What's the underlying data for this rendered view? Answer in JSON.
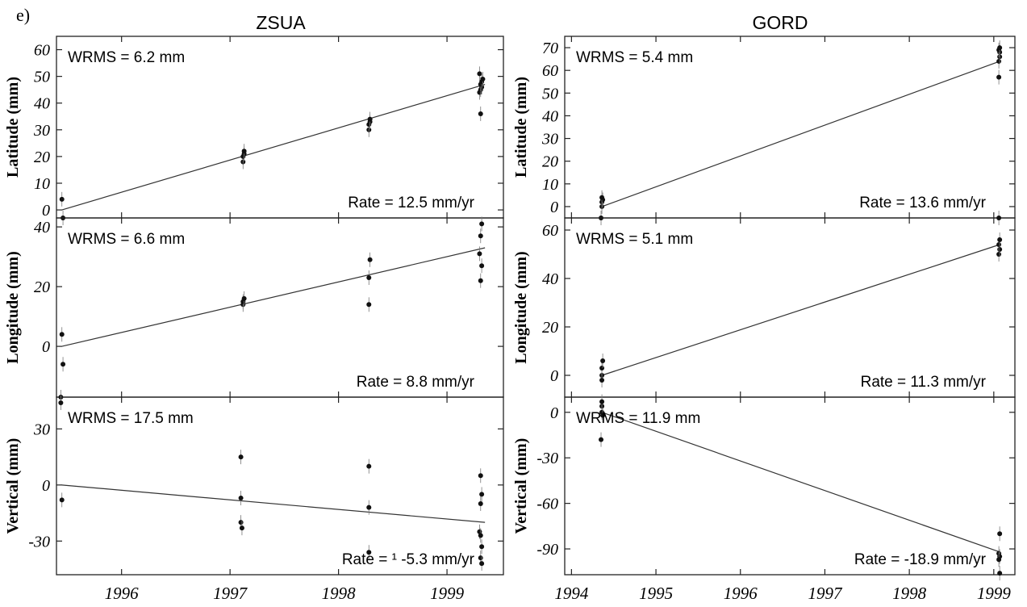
{
  "figure_label": "e)",
  "chart_data": [
    {
      "type": "scatter",
      "station": "ZSUA",
      "component": "Latitude",
      "ylabel": "Latitude (mm)",
      "wrms": "WRMS = 6.2 mm",
      "rate": "Rate = 12.5  mm/yr",
      "xlim": [
        1995.4,
        1999.52
      ],
      "ylim": [
        -3,
        65
      ],
      "yticks": [
        0,
        10,
        20,
        30,
        40,
        50,
        60
      ],
      "xticks": [],
      "points": [
        {
          "x": 1995.45,
          "y": 4
        },
        {
          "x": 1995.46,
          "y": -3
        },
        {
          "x": 1997.12,
          "y": 18
        },
        {
          "x": 1997.12,
          "y": 20
        },
        {
          "x": 1997.13,
          "y": 21
        },
        {
          "x": 1997.13,
          "y": 22
        },
        {
          "x": 1998.28,
          "y": 30
        },
        {
          "x": 1998.28,
          "y": 32
        },
        {
          "x": 1998.29,
          "y": 33
        },
        {
          "x": 1998.29,
          "y": 34
        },
        {
          "x": 1999.31,
          "y": 36
        },
        {
          "x": 1999.3,
          "y": 44
        },
        {
          "x": 1999.31,
          "y": 45
        },
        {
          "x": 1999.32,
          "y": 46
        },
        {
          "x": 1999.31,
          "y": 47
        },
        {
          "x": 1999.32,
          "y": 48
        },
        {
          "x": 1999.33,
          "y": 49
        },
        {
          "x": 1999.3,
          "y": 51
        }
      ],
      "fit": [
        {
          "x": 1995.45,
          "y": 0
        },
        {
          "x": 1999.35,
          "y": 47
        }
      ]
    },
    {
      "type": "scatter",
      "station": "ZSUA",
      "component": "Longitude",
      "ylabel": "Longitude (mm)",
      "wrms": "WRMS = 6.6 mm",
      "rate": "Rate = 8.8  mm/yr",
      "xlim": [
        1995.4,
        1999.52
      ],
      "ylim": [
        -17,
        43
      ],
      "yticks": [
        0,
        20,
        40
      ],
      "xticks": [],
      "points": [
        {
          "x": 1995.45,
          "y": 4
        },
        {
          "x": 1995.46,
          "y": -6
        },
        {
          "x": 1995.44,
          "y": -17
        },
        {
          "x": 1997.12,
          "y": 14
        },
        {
          "x": 1997.12,
          "y": 15
        },
        {
          "x": 1997.13,
          "y": 16
        },
        {
          "x": 1998.28,
          "y": 14
        },
        {
          "x": 1998.28,
          "y": 23
        },
        {
          "x": 1998.29,
          "y": 29
        },
        {
          "x": 1999.31,
          "y": 22
        },
        {
          "x": 1999.32,
          "y": 27
        },
        {
          "x": 1999.3,
          "y": 31
        },
        {
          "x": 1999.31,
          "y": 37
        },
        {
          "x": 1999.32,
          "y": 41
        }
      ],
      "fit": [
        {
          "x": 1995.45,
          "y": 0
        },
        {
          "x": 1999.35,
          "y": 33
        }
      ]
    },
    {
      "type": "scatter",
      "station": "ZSUA",
      "component": "Vertical",
      "ylabel": "Vertical (mm)",
      "wrms": "WRMS = 17.5 mm",
      "rate": "Rate = ¹ -5.3  mm/yr",
      "xlim": [
        1995.4,
        1999.52
      ],
      "ylim": [
        -48,
        47
      ],
      "yticks": [
        -30,
        0,
        30
      ],
      "xticks": [
        1996,
        1997,
        1998,
        1999
      ],
      "points": [
        {
          "x": 1995.45,
          "y": -8
        },
        {
          "x": 1995.44,
          "y": 44
        },
        {
          "x": 1997.1,
          "y": 15
        },
        {
          "x": 1997.1,
          "y": -7
        },
        {
          "x": 1997.1,
          "y": -20
        },
        {
          "x": 1997.11,
          "y": -23
        },
        {
          "x": 1998.28,
          "y": 10
        },
        {
          "x": 1998.28,
          "y": -12
        },
        {
          "x": 1998.28,
          "y": -36
        },
        {
          "x": 1999.31,
          "y": 5
        },
        {
          "x": 1999.32,
          "y": -5
        },
        {
          "x": 1999.31,
          "y": -10
        },
        {
          "x": 1999.3,
          "y": -25
        },
        {
          "x": 1999.31,
          "y": -27
        },
        {
          "x": 1999.32,
          "y": -33
        },
        {
          "x": 1999.31,
          "y": -39
        },
        {
          "x": 1999.32,
          "y": -42
        }
      ],
      "fit": [
        {
          "x": 1995.45,
          "y": 0
        },
        {
          "x": 1999.35,
          "y": -20
        }
      ]
    },
    {
      "type": "scatter",
      "station": "GORD",
      "component": "Latitude",
      "ylabel": "Latitude (mm)",
      "wrms": "WRMS = 5.4 mm",
      "rate": "Rate = 13.6 mm/yr",
      "xlim": [
        1993.92,
        1999.25
      ],
      "ylim": [
        -5,
        75
      ],
      "yticks": [
        0,
        10,
        20,
        30,
        40,
        50,
        60,
        70
      ],
      "xticks": [],
      "points": [
        {
          "x": 1994.36,
          "y": 0
        },
        {
          "x": 1994.36,
          "y": 2
        },
        {
          "x": 1994.37,
          "y": 3
        },
        {
          "x": 1994.36,
          "y": 4
        },
        {
          "x": 1994.35,
          "y": -5
        },
        {
          "x": 1999.06,
          "y": 57
        },
        {
          "x": 1999.06,
          "y": 64
        },
        {
          "x": 1999.07,
          "y": 66
        },
        {
          "x": 1999.07,
          "y": 68
        },
        {
          "x": 1999.06,
          "y": 69
        },
        {
          "x": 1999.07,
          "y": 70
        }
      ],
      "fit": [
        {
          "x": 1994.36,
          "y": 0
        },
        {
          "x": 1999.07,
          "y": 64
        }
      ]
    },
    {
      "type": "scatter",
      "station": "GORD",
      "component": "Longitude",
      "ylabel": "Longitude (mm)",
      "wrms": "WRMS = 5.1 mm",
      "rate": "Rate = 11.3  mm/yr",
      "xlim": [
        1993.92,
        1999.25
      ],
      "ylim": [
        -9,
        65
      ],
      "yticks": [
        0,
        20,
        40,
        60
      ],
      "xticks": [],
      "points": [
        {
          "x": 1994.36,
          "y": 0
        },
        {
          "x": 1994.36,
          "y": 3
        },
        {
          "x": 1994.37,
          "y": 6
        },
        {
          "x": 1994.36,
          "y": -2
        },
        {
          "x": 1999.06,
          "y": 50
        },
        {
          "x": 1999.07,
          "y": 52
        },
        {
          "x": 1999.06,
          "y": 54
        },
        {
          "x": 1999.07,
          "y": 56
        },
        {
          "x": 1999.06,
          "y": 65
        }
      ],
      "fit": [
        {
          "x": 1994.36,
          "y": 0
        },
        {
          "x": 1999.07,
          "y": 54
        }
      ]
    },
    {
      "type": "scatter",
      "station": "GORD",
      "component": "Vertical",
      "ylabel": "Vertical (mm)",
      "wrms": "WRMS = 11.9 mm",
      "rate": "Rate = -18.9 mm/yr",
      "xlim": [
        1993.92,
        1999.25
      ],
      "ylim": [
        -107,
        10
      ],
      "yticks": [
        0,
        -30,
        -60,
        -90
      ],
      "xticks": [
        1994,
        1995,
        1996,
        1997,
        1998,
        1999
      ],
      "points": [
        {
          "x": 1994.36,
          "y": 4
        },
        {
          "x": 1994.36,
          "y": 0
        },
        {
          "x": 1994.37,
          "y": -2
        },
        {
          "x": 1994.36,
          "y": 7
        },
        {
          "x": 1994.35,
          "y": -18
        },
        {
          "x": 1999.07,
          "y": -80
        },
        {
          "x": 1999.06,
          "y": -93
        },
        {
          "x": 1999.07,
          "y": -95
        },
        {
          "x": 1999.06,
          "y": -97
        },
        {
          "x": 1999.07,
          "y": -106
        }
      ],
      "fit": [
        {
          "x": 1994.36,
          "y": 0
        },
        {
          "x": 1999.07,
          "y": -92
        }
      ]
    }
  ]
}
